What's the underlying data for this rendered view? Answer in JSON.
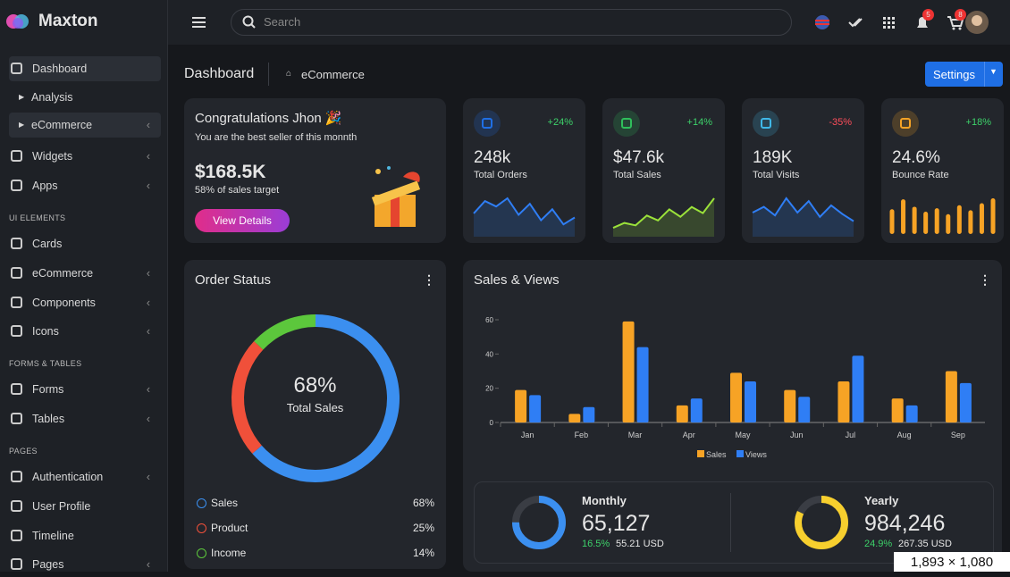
{
  "sidebar": {
    "brand": "Maxton",
    "items": [
      "Dashboard",
      "Analysis",
      "eCommerce",
      "Widgets",
      "Apps",
      "UI ELEMENTS",
      "Cards",
      "eCommerce",
      "Components",
      "Icons",
      "FORMS & TABLES",
      "Forms",
      "Tables",
      "PAGES",
      "Authentication",
      "User Profile",
      "Timeline",
      "Pages"
    ]
  },
  "topbar": {
    "search": "Search",
    "notifications": 5,
    "cart": 8
  },
  "header": {
    "title": "Dashboard",
    "breadcrumb": "eCommerce",
    "button": "Settings"
  },
  "congrats": {
    "title": "Congratulations Jhon 🎉",
    "subtitle": "You are the best seller of this monnth",
    "amount": "$168.5K",
    "note": "58% of sales target",
    "button": "View Details"
  },
  "stats": [
    {
      "change": "+24%",
      "value": "248k",
      "label": "Total Orders",
      "trend": [
        30,
        48,
        40,
        52,
        28,
        44,
        20,
        36,
        14,
        24
      ]
    },
    {
      "change": "+14%",
      "value": "$47.6k",
      "label": "Total Sales",
      "trend": [
        10,
        18,
        14,
        30,
        22,
        40,
        28,
        44,
        34,
        58
      ]
    },
    {
      "change": "-35%",
      "value": "189K",
      "label": "Total Visits",
      "trend": [
        30,
        38,
        26,
        50,
        30,
        46,
        24,
        40,
        28,
        18
      ]
    },
    {
      "change": "+18%",
      "value": "24.6%",
      "label": "Bounce Rate",
      "trend": [
        50,
        70,
        55,
        45,
        52,
        40,
        58,
        48,
        62,
        72
      ]
    }
  ],
  "order_status": {
    "title": "Order Status",
    "center_value": "68%",
    "center_label": "Total Sales",
    "chart_data": {
      "type": "pie",
      "categories": [
        "Sales",
        "Product",
        "Income"
      ],
      "values": [
        68,
        25,
        14
      ],
      "value_labels": [
        "68%",
        "25%",
        "14%"
      ],
      "colors": [
        "#3b8ff0",
        "#f0503a",
        "#5cc73c"
      ]
    }
  },
  "sales_views": {
    "title": "Sales & Views",
    "chart_data": {
      "type": "bar",
      "categories": [
        "Jan",
        "Feb",
        "Mar",
        "Apr",
        "May",
        "Jun",
        "Jul",
        "Aug",
        "Sep"
      ],
      "series": [
        {
          "name": "Sales",
          "color": "#f7a325",
          "values": [
            19,
            5,
            59,
            10,
            29,
            19,
            24,
            14,
            30
          ]
        },
        {
          "name": "Views",
          "color": "#2f7ef5",
          "values": [
            16,
            9,
            44,
            14,
            24,
            15,
            39,
            10,
            23
          ]
        }
      ],
      "ylim": [
        0,
        60
      ],
      "yticks": [
        0,
        20,
        40,
        60
      ]
    }
  },
  "summary": [
    {
      "label": "Monthly",
      "value": "65,127",
      "percent": "16.5%",
      "amount": "55.21 USD",
      "progress": 75,
      "color": "#3b8ff0"
    },
    {
      "label": "Yearly",
      "value": "984,246",
      "percent": "24.9%",
      "amount": "267.35 USD",
      "progress": 82,
      "color": "#f7cf2e"
    }
  ],
  "overlay": "1,893 × 1,080"
}
